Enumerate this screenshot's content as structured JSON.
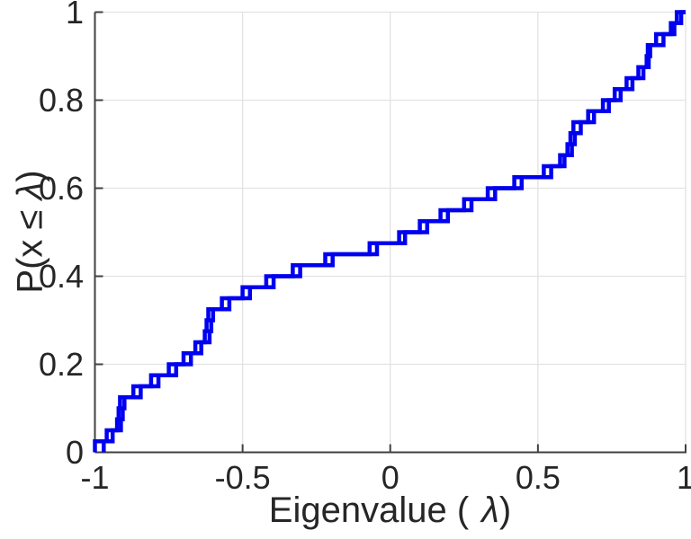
{
  "figure": {
    "background": "#ffffff"
  },
  "chart_data": {
    "type": "line",
    "subtype": "ecdf-staircase",
    "title": "",
    "xlabel_parts": [
      "Eigenvalue (",
      "λ",
      ")"
    ],
    "ylabel_parts": [
      "P(x ≤ ",
      "λ",
      ")"
    ],
    "xlim": [
      -1,
      1
    ],
    "ylim": [
      0,
      1
    ],
    "grid": true,
    "legend_position": "none",
    "x_ticks": [
      {
        "value": -1,
        "label": "-1"
      },
      {
        "value": -0.5,
        "label": "-0.5"
      },
      {
        "value": 0,
        "label": "0"
      },
      {
        "value": 0.5,
        "label": "0.5"
      },
      {
        "value": 1,
        "label": "1"
      }
    ],
    "y_ticks": [
      {
        "value": 0,
        "label": "0"
      },
      {
        "value": 0.2,
        "label": "0.2"
      },
      {
        "value": 0.4,
        "label": "0.4"
      },
      {
        "value": 0.6,
        "label": "0.6"
      },
      {
        "value": 0.8,
        "label": "0.8"
      },
      {
        "value": 1,
        "label": "1"
      }
    ],
    "line_color": "#0000f0",
    "axis_color": "#404040",
    "grid_color": "#e2e2e2",
    "tick_label_color": "#262626",
    "series": [
      {
        "name": "ecdf-series-1",
        "color": "#0000f0",
        "points": 40,
        "lambda": [
          -1.0,
          -0.96,
          -0.925,
          -0.92,
          -0.915,
          -0.87,
          -0.81,
          -0.75,
          -0.7,
          -0.66,
          -0.628,
          -0.622,
          -0.616,
          -0.57,
          -0.5,
          -0.42,
          -0.33,
          -0.22,
          -0.07,
          0.03,
          0.1,
          0.17,
          0.25,
          0.33,
          0.42,
          0.52,
          0.575,
          0.6,
          0.61,
          0.62,
          0.67,
          0.72,
          0.76,
          0.8,
          0.84,
          0.868,
          0.872,
          0.9,
          0.95,
          0.97
        ]
      },
      {
        "name": "ecdf-series-2",
        "color": "#0000f0",
        "points": 40,
        "lambda": [
          -0.97,
          -0.94,
          -0.912,
          -0.906,
          -0.9,
          -0.845,
          -0.785,
          -0.725,
          -0.675,
          -0.64,
          -0.612,
          -0.606,
          -0.6,
          -0.545,
          -0.475,
          -0.395,
          -0.305,
          -0.195,
          -0.045,
          0.05,
          0.125,
          0.195,
          0.275,
          0.355,
          0.445,
          0.545,
          0.59,
          0.615,
          0.625,
          0.645,
          0.69,
          0.74,
          0.78,
          0.82,
          0.857,
          0.875,
          0.88,
          0.925,
          0.962,
          0.985
        ]
      }
    ]
  }
}
